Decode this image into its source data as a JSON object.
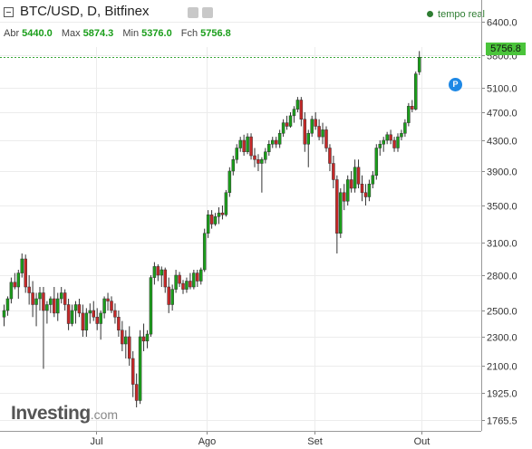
{
  "header": {
    "title": "BTC/USD, D, Bitfinex",
    "live_label": "tempo real",
    "ohlc": [
      {
        "key": "Abr",
        "value": "5440.0"
      },
      {
        "key": "Max",
        "value": "5874.3"
      },
      {
        "key": "Min",
        "value": "5376.0"
      },
      {
        "key": "Fch",
        "value": "5756.8"
      }
    ],
    "icons": [
      "settings-icon",
      "expand-icon"
    ]
  },
  "current_price_tag": "5756.8",
  "p_badge": "P",
  "logo": {
    "word": "Investing",
    "suffix": ".com"
  },
  "colors": {
    "up": "#1a9e1a",
    "down": "#c62828",
    "price_tag": "#4bc43b",
    "badge": "#1e88e5",
    "live": "#2e7d32"
  },
  "chart_data": {
    "type": "candlestick",
    "title": "BTC/USD, D, Bitfinex",
    "ylim": [
      1700,
      6600
    ],
    "y_ticks": [
      6400.0,
      5800.0,
      5100.0,
      4700.0,
      4300.0,
      3900.0,
      3500.0,
      3100.0,
      2800.0,
      2500.0,
      2300.0,
      2100.0,
      1925.0,
      1765.5
    ],
    "y_tick_labels": [
      "6400.0",
      "5800.0",
      "5100.0",
      "4700.0",
      "4300.0",
      "3900.0",
      "3500.0",
      "3100.0",
      "2800.0",
      "2500.0",
      "2300.0",
      "2100.0",
      "1925.0",
      "1765.5"
    ],
    "x_tick_labels": [
      "Jul",
      "Ago",
      "Set",
      "Out"
    ],
    "x_tick_index": [
      26,
      57,
      87,
      117
    ],
    "candles": [
      [
        2450,
        2550,
        2380,
        2500
      ],
      [
        2500,
        2620,
        2460,
        2600
      ],
      [
        2600,
        2780,
        2560,
        2740
      ],
      [
        2740,
        2820,
        2680,
        2700
      ],
      [
        2700,
        2850,
        2600,
        2820
      ],
      [
        2820,
        3000,
        2780,
        2950
      ],
      [
        2950,
        2990,
        2650,
        2700
      ],
      [
        2700,
        2800,
        2550,
        2650
      ],
      [
        2650,
        2750,
        2450,
        2550
      ],
      [
        2550,
        2650,
        2380,
        2600
      ],
      [
        2600,
        2700,
        2500,
        2650
      ],
      [
        2650,
        2700,
        2080,
        2500
      ],
      [
        2500,
        2580,
        2400,
        2550
      ],
      [
        2550,
        2620,
        2480,
        2600
      ],
      [
        2600,
        2700,
        2450,
        2480
      ],
      [
        2480,
        2650,
        2420,
        2600
      ],
      [
        2600,
        2700,
        2560,
        2650
      ],
      [
        2650,
        2680,
        2500,
        2550
      ],
      [
        2550,
        2600,
        2350,
        2400
      ],
      [
        2400,
        2550,
        2380,
        2500
      ],
      [
        2500,
        2580,
        2400,
        2550
      ],
      [
        2550,
        2600,
        2450,
        2480
      ],
      [
        2480,
        2550,
        2300,
        2350
      ],
      [
        2350,
        2520,
        2300,
        2480
      ],
      [
        2480,
        2560,
        2400,
        2500
      ],
      [
        2500,
        2580,
        2420,
        2450
      ],
      [
        2450,
        2520,
        2350,
        2400
      ],
      [
        2400,
        2500,
        2280,
        2480
      ],
      [
        2480,
        2620,
        2440,
        2600
      ],
      [
        2600,
        2650,
        2500,
        2580
      ],
      [
        2580,
        2620,
        2480,
        2500
      ],
      [
        2500,
        2560,
        2400,
        2450
      ],
      [
        2450,
        2500,
        2300,
        2350
      ],
      [
        2350,
        2420,
        2200,
        2250
      ],
      [
        2250,
        2350,
        2150,
        2300
      ],
      [
        2300,
        2380,
        2100,
        2150
      ],
      [
        2150,
        2200,
        1900,
        1980
      ],
      [
        1980,
        2050,
        1840,
        1880
      ],
      [
        1880,
        2350,
        1860,
        2300
      ],
      [
        2300,
        2400,
        2200,
        2270
      ],
      [
        2270,
        2350,
        2220,
        2320
      ],
      [
        2320,
        2800,
        2300,
        2780
      ],
      [
        2780,
        2920,
        2720,
        2880
      ],
      [
        2880,
        2900,
        2750,
        2800
      ],
      [
        2800,
        2880,
        2700,
        2850
      ],
      [
        2850,
        2870,
        2650,
        2700
      ],
      [
        2700,
        2780,
        2480,
        2550
      ],
      [
        2550,
        2720,
        2500,
        2680
      ],
      [
        2680,
        2850,
        2650,
        2800
      ],
      [
        2800,
        2830,
        2700,
        2730
      ],
      [
        2730,
        2760,
        2640,
        2680
      ],
      [
        2680,
        2780,
        2650,
        2750
      ],
      [
        2750,
        2820,
        2680,
        2700
      ],
      [
        2700,
        2850,
        2680,
        2820
      ],
      [
        2820,
        2850,
        2700,
        2750
      ],
      [
        2750,
        2870,
        2720,
        2850
      ],
      [
        2850,
        3250,
        2830,
        3200
      ],
      [
        3200,
        3450,
        3150,
        3400
      ],
      [
        3400,
        3450,
        3250,
        3300
      ],
      [
        3300,
        3420,
        3280,
        3380
      ],
      [
        3380,
        3480,
        3300,
        3420
      ],
      [
        3420,
        3500,
        3350,
        3400
      ],
      [
        3400,
        3680,
        3380,
        3650
      ],
      [
        3650,
        3950,
        3600,
        3900
      ],
      [
        3900,
        4100,
        3850,
        4050
      ],
      [
        4050,
        4250,
        4000,
        4200
      ],
      [
        4200,
        4350,
        4150,
        4300
      ],
      [
        4300,
        4380,
        4100,
        4150
      ],
      [
        4150,
        4400,
        4120,
        4350
      ],
      [
        4350,
        4400,
        4050,
        4100
      ],
      [
        4100,
        4200,
        3950,
        4050
      ],
      [
        4050,
        4120,
        3900,
        4000
      ],
      [
        4000,
        4080,
        3650,
        4050
      ],
      [
        4050,
        4200,
        4000,
        4150
      ],
      [
        4150,
        4300,
        4100,
        4250
      ],
      [
        4250,
        4350,
        4200,
        4300
      ],
      [
        4300,
        4350,
        4200,
        4250
      ],
      [
        4250,
        4450,
        4200,
        4400
      ],
      [
        4400,
        4600,
        4350,
        4550
      ],
      [
        4550,
        4650,
        4450,
        4500
      ],
      [
        4500,
        4700,
        4480,
        4650
      ],
      [
        4650,
        4800,
        4550,
        4750
      ],
      [
        4750,
        4950,
        4700,
        4900
      ],
      [
        4900,
        4950,
        4500,
        4600
      ],
      [
        4600,
        4700,
        4150,
        4250
      ],
      [
        4250,
        4450,
        3950,
        4400
      ],
      [
        4400,
        4650,
        4350,
        4600
      ],
      [
        4600,
        4700,
        4450,
        4500
      ],
      [
        4500,
        4600,
        4300,
        4350
      ],
      [
        4350,
        4550,
        4250,
        4450
      ],
      [
        4450,
        4500,
        4150,
        4200
      ],
      [
        4200,
        4250,
        3900,
        4000
      ],
      [
        4000,
        4100,
        3700,
        3800
      ],
      [
        3800,
        3850,
        3000,
        3200
      ],
      [
        3200,
        3700,
        3150,
        3650
      ],
      [
        3650,
        3750,
        3450,
        3550
      ],
      [
        3550,
        3850,
        3500,
        3800
      ],
      [
        3800,
        3900,
        3650,
        3700
      ],
      [
        3700,
        4050,
        3650,
        3950
      ],
      [
        3950,
        4050,
        3700,
        3750
      ],
      [
        3750,
        3850,
        3550,
        3650
      ],
      [
        3650,
        3750,
        3500,
        3600
      ],
      [
        3600,
        3800,
        3550,
        3750
      ],
      [
        3750,
        3900,
        3700,
        3850
      ],
      [
        3850,
        4250,
        3800,
        4200
      ],
      [
        4200,
        4300,
        4100,
        4250
      ],
      [
        4250,
        4350,
        4150,
        4300
      ],
      [
        4300,
        4420,
        4250,
        4380
      ],
      [
        4380,
        4450,
        4250,
        4300
      ],
      [
        4300,
        4350,
        4150,
        4200
      ],
      [
        4200,
        4400,
        4150,
        4350
      ],
      [
        4350,
        4450,
        4300,
        4400
      ],
      [
        4400,
        4600,
        4350,
        4550
      ],
      [
        4550,
        4850,
        4500,
        4800
      ],
      [
        4800,
        4900,
        4700,
        4750
      ],
      [
        4750,
        5450,
        4730,
        5400
      ],
      [
        5440.0,
        5874.3,
        5376.0,
        5756.8
      ]
    ],
    "last_price": 5756.8
  }
}
